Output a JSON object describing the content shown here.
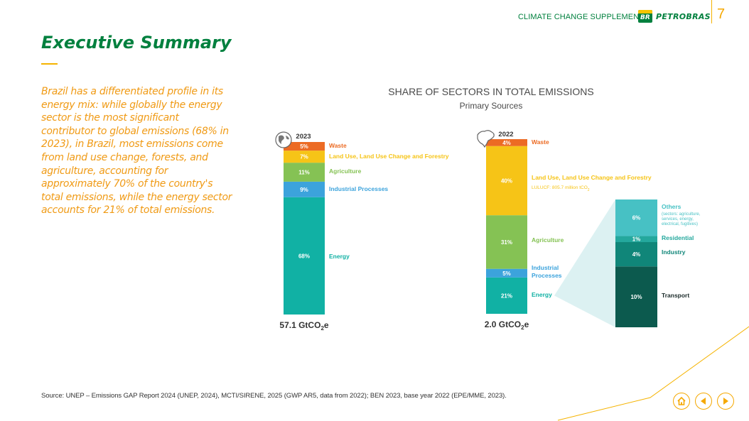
{
  "header": {
    "supplement": "CLIMATE CHANGE SUPPLEMENT",
    "logo_mark": "BR",
    "logo_text": "PETROBRAS",
    "page_number": "7"
  },
  "title": "Executive Summary",
  "summary": "Brazil has a differentiated profile in its energy mix: while globally the energy sector is the most significant contributor to global emissions (68% in 2023), in Brazil, most emissions come from land use change, forests, and agriculture, accounting for approximately 70% of the country's total emissions, while the energy sector accounts for 21% of total emissions.",
  "source": "Source: UNEP – Emissions GAP Report 2024 (UNEP, 2024), MCTI/SIRENE, 2025 (GWP AR5, data from 2022); BEN 2023, base year 2022 (EPE/MME, 2023).",
  "nav": {
    "home": "home-icon",
    "prev": "prev-icon",
    "next": "next-icon"
  },
  "colors": {
    "green": "#00803e",
    "orange": "#f5a800",
    "waste": "#ec6b24",
    "land": "#f6c417",
    "agriculture": "#85c254",
    "industrial": "#3ca3dc",
    "energy": "#11b1a4",
    "others": "#47c1c4",
    "residential": "#24a89d",
    "industry": "#108679",
    "transport": "#0c5a4e"
  },
  "chart_data": {
    "type": "bar",
    "title": "SHARE OF SECTORS IN TOTAL EMISSIONS",
    "subtitle": "Primary Sources",
    "stacked": true,
    "series": [
      {
        "name": "2023",
        "region": "Global",
        "icon": "globe-icon",
        "total": "57.1 GtCO2e",
        "segments": [
          {
            "label": "Energy",
            "value": 68,
            "text": "68%",
            "color": "#11b1a4"
          },
          {
            "label": "Industrial Processes",
            "value": 9,
            "text": "9%",
            "color": "#3ca3dc"
          },
          {
            "label": "Agriculture",
            "value": 11,
            "text": "11%",
            "color": "#85c254"
          },
          {
            "label": "Land Use, Land Use Change and Forestry",
            "value": 7,
            "text": "7%",
            "color": "#f6c417"
          },
          {
            "label": "Waste",
            "value": 5,
            "text": "5%",
            "color": "#ec6b24"
          }
        ]
      },
      {
        "name": "2022",
        "region": "Brazil",
        "icon": "brazil-map-icon",
        "total": "2.0 GtCO2e",
        "segments": [
          {
            "label": "Energy",
            "value": 21,
            "text": "21%",
            "color": "#11b1a4"
          },
          {
            "label": "Industrial Processes",
            "value": 5,
            "text": "5%",
            "color": "#3ca3dc"
          },
          {
            "label": "Agriculture",
            "value": 31,
            "text": "31%",
            "color": "#85c254"
          },
          {
            "label": "Land Use, Land Use Change and Forestry",
            "value": 40,
            "text": "40%",
            "color": "#f6c417",
            "note": "LULUCF: 805.7 million tCO2"
          },
          {
            "label": "Waste",
            "value": 4,
            "text": "4%",
            "color": "#ec6b24"
          }
        ]
      }
    ],
    "breakdown": {
      "parent": "Energy",
      "segments": [
        {
          "label": "Transport",
          "value": 10,
          "text": "10%",
          "color": "#0c5a4e"
        },
        {
          "label": "Industry",
          "value": 4,
          "text": "4%",
          "color": "#108679"
        },
        {
          "label": "Residential",
          "value": 1,
          "text": "1%",
          "color": "#24a89d"
        },
        {
          "label": "Others",
          "value": 6,
          "text": "6%",
          "color": "#47c1c4",
          "note": "(sectors: agriculture, services, energy, electrical, fugitives)"
        }
      ]
    }
  }
}
